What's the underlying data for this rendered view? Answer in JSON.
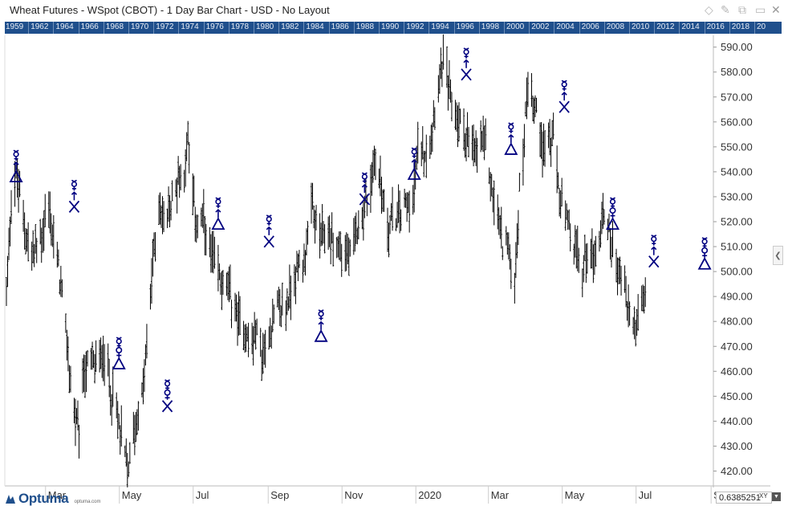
{
  "window": {
    "title": "Wheat Futures - WSpot (CBOT) - 1 Day Bar Chart - USD - No Layout",
    "icons": [
      "diamond-icon",
      "pin-icon",
      "restore-icon",
      "maximize-icon",
      "close-icon"
    ]
  },
  "year_bar": {
    "labels": [
      "1959",
      "1962",
      "1964",
      "1966",
      "1968",
      "1970",
      "1972",
      "1974",
      "1976",
      "1978",
      "1980",
      "1982",
      "1984",
      "1986",
      "1988",
      "1990",
      "1992",
      "1994",
      "1996",
      "1998",
      "2000",
      "2002",
      "2004",
      "2006",
      "2008",
      "2010",
      "2012",
      "2014",
      "2016",
      "2018",
      "20"
    ]
  },
  "brand": {
    "name": "Optuma",
    "url": "optuma.com",
    "color": "#1f4f8c"
  },
  "readout": {
    "value": "0.6385251",
    "mode": "XY"
  },
  "colors": {
    "bars": "#000000",
    "symbols": "#000080",
    "accent": "#1f4f8c"
  },
  "chart_data": {
    "type": "ohlc",
    "title": "Wheat Futures - WSpot (CBOT) - 1 Day Bar Chart - USD",
    "y_axis": {
      "position": "right",
      "ylim": [
        414,
        593
      ],
      "ticks": [
        420,
        430,
        440,
        450,
        460,
        470,
        480,
        490,
        500,
        510,
        520,
        530,
        540,
        550,
        560,
        570,
        580,
        590
      ],
      "tick_labels": [
        "420.00",
        "430.00",
        "440.00",
        "450.00",
        "460.00",
        "470.00",
        "480.00",
        "490.00",
        "500.00",
        "510.00",
        "520.00",
        "530.00",
        "540.00",
        "550.00",
        "560.00",
        "570.00",
        "580.00",
        "590.00"
      ]
    },
    "x_axis": {
      "tick_labels": [
        "Mar",
        "May",
        "Jul",
        "Sep",
        "Nov",
        "2020",
        "Mar",
        "May",
        "Jul",
        "S"
      ],
      "tick_days": [
        33,
        94,
        155,
        217,
        278,
        339,
        399,
        460,
        521,
        583
      ]
    },
    "price_path": [
      [
        0,
        492
      ],
      [
        4,
        530
      ],
      [
        8,
        538
      ],
      [
        14,
        522
      ],
      [
        20,
        505
      ],
      [
        30,
        515
      ],
      [
        34,
        528
      ],
      [
        38,
        515
      ],
      [
        42,
        505
      ],
      [
        47,
        485
      ],
      [
        55,
        447
      ],
      [
        60,
        432
      ],
      [
        64,
        460
      ],
      [
        69,
        463
      ],
      [
        75,
        462
      ],
      [
        80,
        468
      ],
      [
        84,
        460
      ],
      [
        87,
        452
      ],
      [
        91,
        443
      ],
      [
        96,
        432
      ],
      [
        100,
        420
      ],
      [
        104,
        432
      ],
      [
        107,
        440
      ],
      [
        111,
        445
      ],
      [
        116,
        468
      ],
      [
        121,
        505
      ],
      [
        126,
        525
      ],
      [
        132,
        520
      ],
      [
        137,
        528
      ],
      [
        142,
        538
      ],
      [
        147,
        540
      ],
      [
        150,
        555
      ],
      [
        153,
        532
      ],
      [
        158,
        518
      ],
      [
        163,
        520
      ],
      [
        166,
        510
      ],
      [
        170,
        505
      ],
      [
        175,
        500
      ],
      [
        179,
        495
      ],
      [
        183,
        492
      ],
      [
        188,
        487
      ],
      [
        192,
        480
      ],
      [
        197,
        478
      ],
      [
        201,
        470
      ],
      [
        207,
        476
      ],
      [
        211,
        466
      ],
      [
        214,
        468
      ],
      [
        218,
        478
      ],
      [
        224,
        485
      ],
      [
        231,
        485
      ],
      [
        236,
        495
      ],
      [
        241,
        502
      ],
      [
        246,
        505
      ],
      [
        253,
        525
      ],
      [
        259,
        513
      ],
      [
        265,
        515
      ],
      [
        270,
        513
      ],
      [
        276,
        509
      ],
      [
        281,
        507
      ],
      [
        285,
        504
      ],
      [
        290,
        518
      ],
      [
        295,
        525
      ],
      [
        300,
        532
      ],
      [
        305,
        546
      ],
      [
        310,
        533
      ],
      [
        315,
        518
      ],
      [
        321,
        522
      ],
      [
        326,
        524
      ],
      [
        331,
        528
      ],
      [
        337,
        532
      ],
      [
        341,
        553
      ],
      [
        347,
        548
      ],
      [
        352,
        560
      ],
      [
        357,
        576
      ],
      [
        360,
        585
      ],
      [
        364,
        578
      ],
      [
        368,
        568
      ],
      [
        372,
        562
      ],
      [
        375,
        560
      ],
      [
        379,
        556
      ],
      [
        383,
        551
      ],
      [
        387,
        546
      ],
      [
        392,
        554
      ],
      [
        397,
        549
      ],
      [
        401,
        534
      ],
      [
        405,
        524
      ],
      [
        410,
        512
      ],
      [
        414,
        512
      ],
      [
        418,
        498
      ],
      [
        420,
        494
      ],
      [
        424,
        532
      ],
      [
        427,
        545
      ],
      [
        430,
        572
      ],
      [
        433,
        578
      ],
      [
        436,
        565
      ],
      [
        440,
        562
      ],
      [
        444,
        548
      ],
      [
        448,
        553
      ],
      [
        452,
        552
      ],
      [
        456,
        536
      ],
      [
        460,
        522
      ],
      [
        464,
        518
      ],
      [
        468,
        510
      ],
      [
        472,
        506
      ],
      [
        476,
        500
      ],
      [
        480,
        510
      ],
      [
        485,
        505
      ],
      [
        490,
        515
      ],
      [
        495,
        525
      ],
      [
        500,
        512
      ],
      [
        504,
        504
      ],
      [
        509,
        497
      ],
      [
        513,
        487
      ],
      [
        517,
        480
      ],
      [
        521,
        478
      ],
      [
        525,
        487
      ],
      [
        528,
        490
      ]
    ],
    "range_start_day": 0,
    "range_end_day": 528,
    "symbols": [
      {
        "day": 8,
        "pair": [
          "mercury",
          "mars"
        ],
        "aspect": "trine",
        "price": 538
      },
      {
        "day": 56,
        "pair": [
          "mercury",
          "mars"
        ],
        "aspect": "opposition",
        "price": 526
      },
      {
        "day": 93,
        "pair": [
          "mercury",
          "venus"
        ],
        "aspect": "trine",
        "price": 463
      },
      {
        "day": 133,
        "pair": [
          "mercury",
          "venus"
        ],
        "aspect": "opposition",
        "price": 446
      },
      {
        "day": 175,
        "pair": [
          "mercury",
          "mars"
        ],
        "aspect": "trine",
        "price": 519
      },
      {
        "day": 217,
        "pair": [
          "mercury",
          "mars"
        ],
        "aspect": "opposition",
        "price": 512
      },
      {
        "day": 260,
        "pair": [
          "mercury",
          "mars"
        ],
        "aspect": "trine",
        "price": 474
      },
      {
        "day": 296,
        "pair": [
          "mercury",
          "mars"
        ],
        "aspect": "opposition",
        "price": 529
      },
      {
        "day": 337,
        "pair": [
          "mercury",
          "mars"
        ],
        "aspect": "trine",
        "price": 539
      },
      {
        "day": 380,
        "pair": [
          "mercury",
          "mars"
        ],
        "aspect": "opposition",
        "price": 579
      },
      {
        "day": 417,
        "pair": [
          "mercury",
          "mars"
        ],
        "aspect": "trine",
        "price": 549
      },
      {
        "day": 461,
        "pair": [
          "mercury",
          "mars"
        ],
        "aspect": "opposition",
        "price": 566
      },
      {
        "day": 501,
        "pair": [
          "mercury",
          "venus"
        ],
        "aspect": "trine",
        "price": 519
      },
      {
        "day": 535,
        "pair": [
          "mercury",
          "mars"
        ],
        "aspect": "opposition",
        "price": 504
      },
      {
        "day": 577,
        "pair": [
          "mercury",
          "venus"
        ],
        "aspect": "trine",
        "price": 503
      }
    ],
    "legend": "none",
    "grid": false
  }
}
